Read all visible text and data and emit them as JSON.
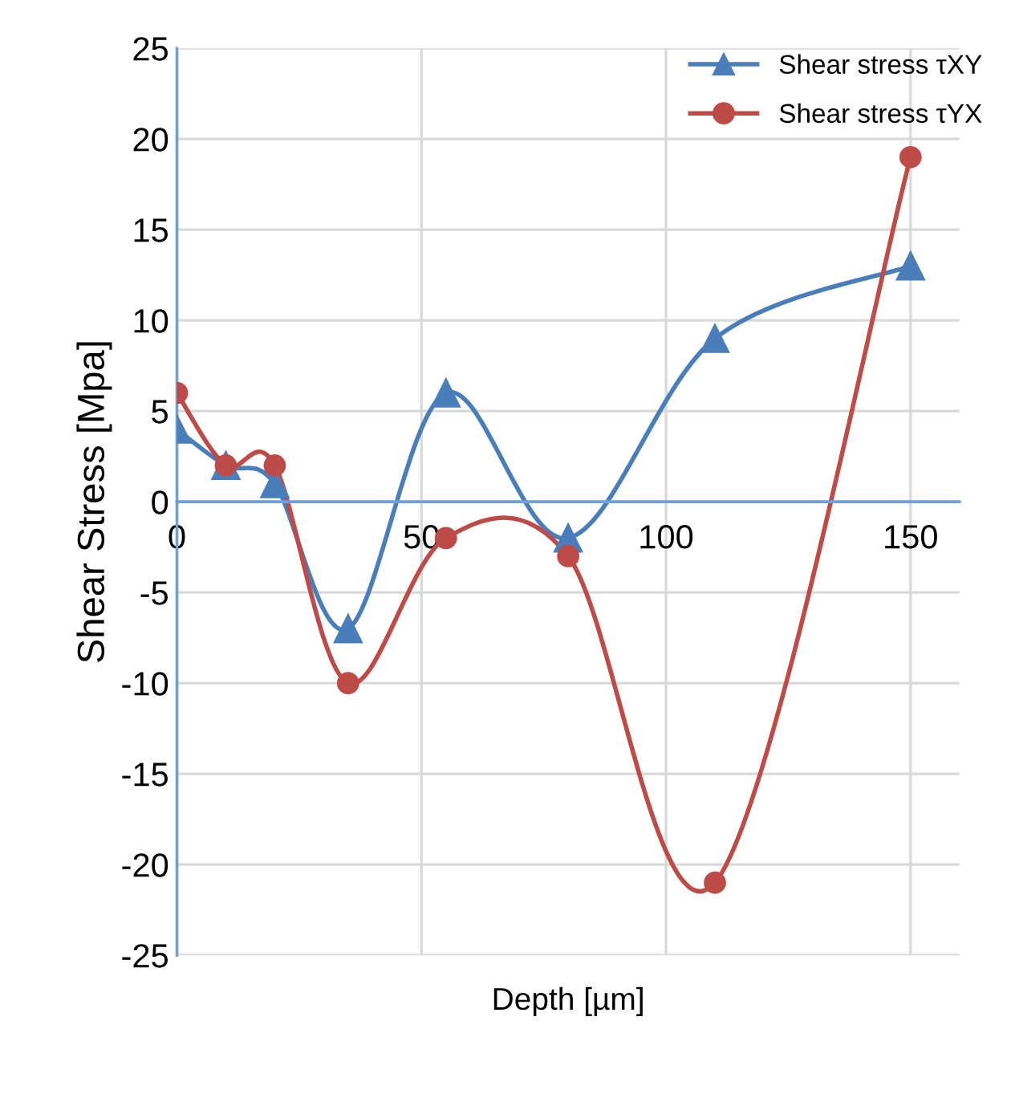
{
  "chart_data": {
    "type": "line",
    "xlabel": "Depth [µm]",
    "ylabel": "Shear Stress [Mpa]",
    "xlim": [
      0,
      160
    ],
    "xticks": [
      0,
      50,
      100,
      150
    ],
    "ylim": [
      -25,
      25
    ],
    "yticks": [
      -25,
      -20,
      -15,
      -10,
      -5,
      0,
      5,
      10,
      15,
      20,
      25
    ],
    "grid": true,
    "legend": "top right",
    "line_style": "solid",
    "series": [
      {
        "name": "Shear stress τXY",
        "color": "#4a7ebb",
        "marker": "triangle",
        "x": [
          0,
          10,
          20,
          35,
          55,
          80,
          110,
          150
        ],
        "values": [
          4,
          2,
          1,
          -7,
          6,
          -2,
          9,
          13
        ]
      },
      {
        "name": "Shear stress τYX",
        "color": "#be4b48",
        "marker": "circle",
        "x": [
          0,
          10,
          20,
          35,
          55,
          80,
          110,
          150
        ],
        "values": [
          6,
          2,
          2,
          -10,
          -2,
          -3,
          -21,
          19
        ]
      }
    ]
  }
}
